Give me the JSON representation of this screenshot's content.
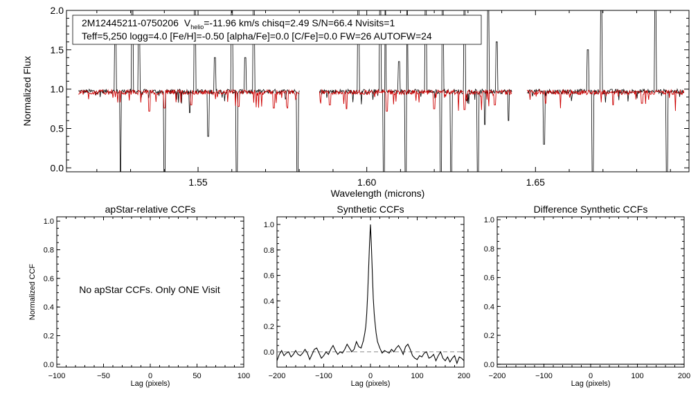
{
  "figure": {
    "annotation": {
      "line1_star": "2M12445211-0750206",
      "line1_v": "V",
      "line1_sub": "helio",
      "line1_rest": "=-11.96 km/s  chisq=2.49  S/N=66.4  Nvisits=1",
      "line2": "Teff=5,250 logg=4.0 [Fe/H]=-0.50 [alpha/Fe]=0.0 [C/Fe]=0.0 FW=26 AUTOFW=24"
    },
    "message": "No apStar CCFs.  Only ONE Visit"
  },
  "chart_data": [
    {
      "type": "line",
      "id": "spectrum",
      "xlabel": "Wavelength (microns)",
      "ylabel": "Normalized Flux",
      "xlim": [
        1.511,
        1.6955
      ],
      "ylim": [
        -0.05,
        2.0
      ],
      "xticks": [
        1.55,
        1.6,
        1.65
      ],
      "xtick_labels": [
        "1.55",
        "1.60",
        "1.65"
      ],
      "yticks": [
        0.0,
        0.5,
        1.0,
        1.5,
        2.0
      ],
      "ytick_labels": [
        "0.0",
        "0.5",
        "1.0",
        "1.5",
        "2.0"
      ],
      "chips": [
        [
          1.5145,
          1.58
        ],
        [
          1.586,
          1.643
        ],
        [
          1.6475,
          1.694
        ]
      ],
      "series": [
        {
          "color": "#000000",
          "continuum": 0.97,
          "spikes": [
            [
              1.5255,
              1.8
            ],
            [
              1.5305,
              2.0
            ],
            [
              1.5325,
              1.8
            ],
            [
              1.549,
              2.0
            ],
            [
              1.555,
              1.4
            ],
            [
              1.56,
              2.0
            ],
            [
              1.564,
              1.4
            ],
            [
              1.5665,
              2.0
            ],
            [
              1.581,
              1.15
            ],
            [
              1.5975,
              2.0
            ],
            [
              1.604,
              2.0
            ],
            [
              1.6055,
              2.0
            ],
            [
              1.6095,
              1.35
            ],
            [
              1.612,
              2.0
            ],
            [
              1.6175,
              2.0
            ],
            [
              1.6225,
              2.0
            ],
            [
              1.629,
              2.0
            ],
            [
              1.636,
              2.0
            ],
            [
              1.6385,
              1.6
            ],
            [
              1.6445,
              1.4
            ],
            [
              1.6655,
              1.5
            ],
            [
              1.6695,
              2.0
            ],
            [
              1.6855,
              2.0
            ]
          ],
          "dips": [
            [
              1.527,
              -0.05
            ],
            [
              1.54,
              -0.05
            ],
            [
              1.5475,
              0.7
            ],
            [
              1.553,
              0.4
            ],
            [
              1.5615,
              -0.05
            ],
            [
              1.5665,
              -0.05
            ],
            [
              1.5795,
              -0.05
            ],
            [
              1.604,
              -0.05
            ],
            [
              1.605,
              -0.05
            ],
            [
              1.6115,
              -0.05
            ],
            [
              1.622,
              -0.05
            ],
            [
              1.625,
              -0.05
            ],
            [
              1.633,
              -0.05
            ],
            [
              1.635,
              0.55
            ],
            [
              1.642,
              0.6
            ],
            [
              1.6525,
              0.3
            ],
            [
              1.667,
              -0.05
            ],
            [
              1.689,
              -0.05
            ]
          ]
        },
        {
          "color": "#cc0000",
          "continuum": 0.96,
          "spikes": [],
          "dips": [
            [
              1.5355,
              0.72
            ],
            [
              1.54,
              0.76
            ],
            [
              1.548,
              0.8
            ],
            [
              1.562,
              0.78
            ],
            [
              1.5725,
              0.76
            ],
            [
              1.5765,
              0.76
            ],
            [
              1.589,
              0.8
            ],
            [
              1.594,
              0.75
            ],
            [
              1.606,
              0.72
            ],
            [
              1.62,
              0.75
            ],
            [
              1.629,
              0.74
            ],
            [
              1.638,
              0.8
            ],
            [
              1.653,
              0.82
            ],
            [
              1.673,
              0.8
            ],
            [
              1.6815,
              0.82
            ]
          ]
        }
      ]
    },
    {
      "type": "line",
      "id": "apstar_ccf",
      "title": "apStar-relative CCFs",
      "xlabel": "Lag (pixels)",
      "ylabel": "Normalized CCF",
      "xlim": [
        -100,
        100
      ],
      "ylim": [
        -0.02,
        1.03
      ],
      "xticks": [
        -100,
        -50,
        0,
        50,
        100
      ],
      "xtick_labels": [
        "−100",
        "−50",
        "0",
        "50",
        "100"
      ],
      "yticks": [
        0.0,
        0.2,
        0.4,
        0.6,
        0.8,
        1.0
      ],
      "ytick_labels": [
        "0.0",
        "0.2",
        "0.4",
        "0.6",
        "0.8",
        "1.0"
      ],
      "series": []
    },
    {
      "type": "line",
      "id": "synthetic_ccf",
      "title": "Synthetic CCFs",
      "xlabel": "Lag (pixels)",
      "ylabel": "",
      "xlim": [
        -200,
        200
      ],
      "ylim": [
        -0.12,
        1.06
      ],
      "xticks": [
        -200,
        -100,
        0,
        100,
        200
      ],
      "xtick_labels": [
        "−200",
        "−100",
        "0",
        "100",
        "200"
      ],
      "yticks": [
        0.0,
        0.2,
        0.4,
        0.6,
        0.8,
        1.0
      ],
      "ytick_labels": [
        "0.0",
        "0.2",
        "0.4",
        "0.6",
        "0.8",
        "1.0"
      ],
      "reference_line": 0.0,
      "series": [
        {
          "color": "#000000",
          "x": [
            -200,
            -195,
            -190,
            -185,
            -180,
            -175,
            -170,
            -165,
            -160,
            -155,
            -150,
            -145,
            -140,
            -135,
            -130,
            -125,
            -120,
            -115,
            -110,
            -105,
            -100,
            -95,
            -90,
            -85,
            -80,
            -75,
            -70,
            -65,
            -60,
            -55,
            -50,
            -45,
            -40,
            -35,
            -30,
            -25,
            -20,
            -15,
            -12,
            -10,
            -8,
            -6,
            -4,
            -2,
            0,
            2,
            4,
            6,
            8,
            10,
            12,
            15,
            20,
            25,
            30,
            35,
            40,
            45,
            50,
            55,
            60,
            65,
            70,
            75,
            80,
            85,
            90,
            95,
            100,
            105,
            110,
            115,
            120,
            125,
            130,
            135,
            140,
            145,
            150,
            155,
            160,
            165,
            170,
            175,
            180,
            185,
            190,
            195,
            200
          ],
          "y": [
            -0.07,
            -0.02,
            0.01,
            -0.03,
            -0.01,
            0.0,
            -0.04,
            -0.02,
            0.01,
            -0.02,
            -0.03,
            -0.01,
            0.02,
            -0.01,
            -0.06,
            -0.02,
            0.02,
            0.03,
            -0.01,
            -0.05,
            -0.03,
            0.0,
            -0.02,
            0.02,
            0.05,
            0.01,
            -0.02,
            0.0,
            -0.01,
            0.02,
            0.06,
            0.03,
            0.0,
            0.02,
            0.08,
            0.04,
            0.03,
            0.09,
            0.15,
            0.2,
            0.3,
            0.45,
            0.65,
            0.85,
            1.0,
            0.83,
            0.62,
            0.42,
            0.3,
            0.22,
            0.15,
            0.08,
            0.03,
            -0.01,
            0.01,
            0.0,
            -0.01,
            0.02,
            0.0,
            0.03,
            0.05,
            0.02,
            -0.02,
            0.04,
            0.06,
            0.02,
            -0.03,
            -0.05,
            -0.06,
            -0.03,
            -0.04,
            -0.01,
            0.0,
            -0.05,
            -0.04,
            -0.02,
            -0.07,
            -0.03,
            0.0,
            -0.05,
            -0.07,
            -0.04,
            -0.08,
            -0.05,
            -0.03,
            -0.09,
            -0.04,
            -0.05,
            -0.07
          ]
        }
      ]
    },
    {
      "type": "line",
      "id": "difference_ccf",
      "title": "Difference Synthetic CCFs",
      "xlabel": "Lag (pixels)",
      "ylabel": "",
      "xlim": [
        -200,
        200
      ],
      "ylim": [
        -0.02,
        1.02
      ],
      "xticks": [
        -200,
        -100,
        0,
        100,
        200
      ],
      "xtick_labels": [
        "−200",
        "−100",
        "0",
        "100",
        "200"
      ],
      "yticks": [
        0.0,
        0.2,
        0.4,
        0.6,
        0.8,
        1.0
      ],
      "ytick_labels": [
        "0.0",
        "0.2",
        "0.4",
        "0.6",
        "0.8",
        "1.0"
      ],
      "series": [
        {
          "color": "#000000",
          "x": [
            -200,
            200
          ],
          "y": [
            0.0,
            0.0
          ]
        }
      ]
    }
  ]
}
